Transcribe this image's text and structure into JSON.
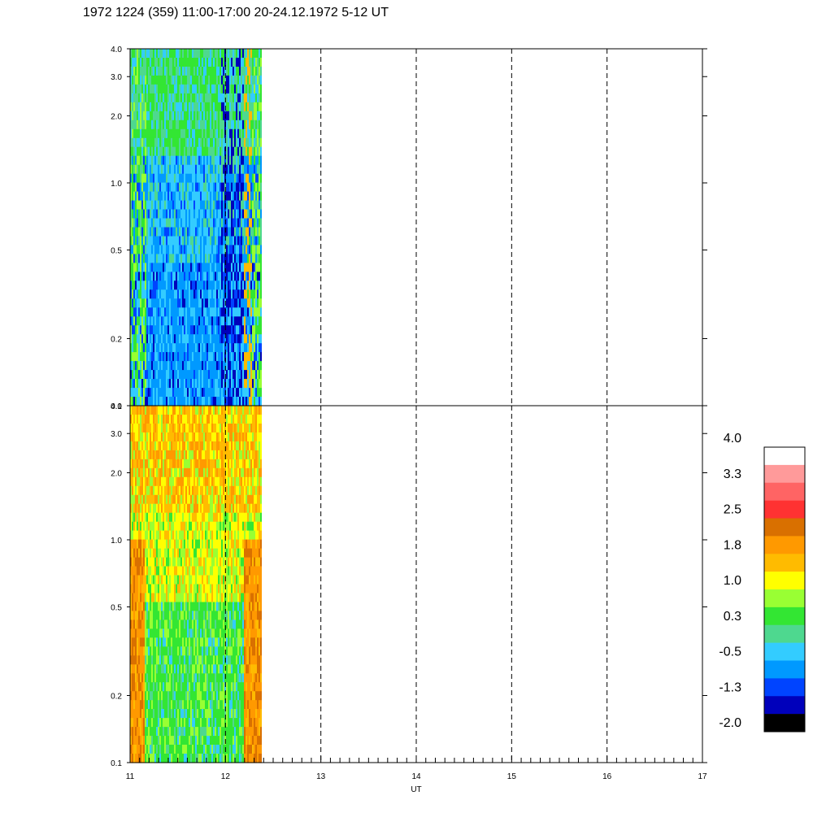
{
  "chart_data": {
    "type": "heatmap",
    "title": "1972 1224 (359) 11:00-17:00 20-24.12.1972  5-12 UT",
    "xlabel": "UT",
    "x_ticks": [
      "11",
      "12",
      "13",
      "14",
      "15",
      "16",
      "17"
    ],
    "xlim": [
      11,
      17
    ],
    "data_extent_x": [
      11,
      12.38
    ],
    "dashed_gridlines_x": [
      12,
      13,
      14,
      15,
      16
    ],
    "y_scale": "log",
    "ylim": [
      0.1,
      4.0
    ],
    "panels": [
      {
        "y_ticks": [
          "0.1",
          "0.2",
          "0.5",
          "1.0",
          "2.0",
          "3.0",
          "4.0"
        ],
        "description_colors": "dominant blue/cyan with green and yellow streaks"
      },
      {
        "y_ticks": [
          "0.1",
          "0.2",
          "0.5",
          "1.0",
          "2.0",
          "3.0",
          "4.0"
        ],
        "description_colors": "dominant green/yellow/orange with orange bands near edges"
      }
    ],
    "colorbar": {
      "labels": [
        "4.0",
        "3.3",
        "2.5",
        "1.8",
        "1.0",
        "0.3",
        "-0.5",
        "-1.3",
        "-2.0"
      ],
      "colors": [
        "#ffffff",
        "#ff9a9a",
        "#ff6464",
        "#ff3232",
        "#d97000",
        "#ff9900",
        "#ffbb00",
        "#ffff00",
        "#99ff33",
        "#33e633",
        "#4ed88f",
        "#33ccff",
        "#0099ff",
        "#0044ff",
        "#0000bb",
        "#000000"
      ]
    }
  }
}
